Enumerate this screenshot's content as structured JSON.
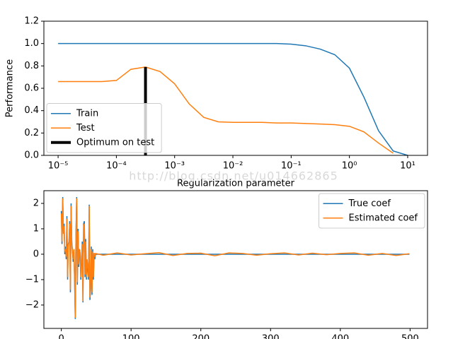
{
  "chart_data": [
    {
      "type": "line",
      "xscale": "log",
      "xlabel": "Regularization parameter",
      "ylabel": "Performance",
      "watermark": "http://blog.csdn.net/u014662865",
      "legend": "lower left",
      "x": [
        1e-05,
        1.778e-05,
        3.162e-05,
        5.623e-05,
        0.0001,
        0.0001778,
        0.0003162,
        0.0005623,
        0.001,
        0.001778,
        0.003162,
        0.005623,
        0.01,
        0.01778,
        0.03162,
        0.05623,
        0.1,
        0.1778,
        0.3162,
        0.5623,
        1,
        1.778,
        3.162,
        5.623,
        10
      ],
      "series": [
        {
          "name": "Train",
          "color": "#1f77b4",
          "linewidth": 1.5,
          "values": [
            1.0,
            1.0,
            1.0,
            1.0,
            1.0,
            1.0,
            1.0,
            1.0,
            1.0,
            1.0,
            1.0,
            1.0,
            1.0,
            1.0,
            1.0,
            1.0,
            0.995,
            0.98,
            0.95,
            0.9,
            0.78,
            0.52,
            0.22,
            0.04,
            0.0
          ]
        },
        {
          "name": "Test",
          "color": "#ff7f0e",
          "linewidth": 1.5,
          "values": [
            0.66,
            0.66,
            0.66,
            0.66,
            0.67,
            0.77,
            0.79,
            0.75,
            0.64,
            0.46,
            0.34,
            0.3,
            0.295,
            0.295,
            0.295,
            0.29,
            0.29,
            0.285,
            0.28,
            0.275,
            0.26,
            0.21,
            0.11,
            0.02,
            null
          ]
        },
        {
          "name": "Optimum on test",
          "color": "#000000",
          "linewidth": 4,
          "x": [
            0.0003162,
            0.0003162
          ],
          "values": [
            0,
            0.79
          ]
        }
      ],
      "xlim": [
        5.7e-06,
        21.9
      ],
      "ylim": [
        0,
        1.2
      ],
      "xticks": [
        {
          "value": 1e-05,
          "label": "10⁻⁵"
        },
        {
          "value": 0.0001,
          "label": "10⁻⁴"
        },
        {
          "value": 0.001,
          "label": "10⁻³"
        },
        {
          "value": 0.01,
          "label": "10⁻²"
        },
        {
          "value": 0.1,
          "label": "10⁻¹"
        },
        {
          "value": 1,
          "label": "10⁰"
        },
        {
          "value": 10,
          "label": "10¹"
        }
      ],
      "yticks": [
        {
          "value": 0,
          "label": "0.0"
        },
        0.2,
        0.4,
        0.6,
        0.8,
        {
          "value": 1,
          "label": "1.0"
        },
        1.2
      ]
    },
    {
      "type": "line",
      "legend": "upper right",
      "x": [
        0,
        1,
        2,
        3,
        4,
        5,
        6,
        7,
        8,
        9,
        10,
        11,
        12,
        13,
        14,
        15,
        16,
        17,
        18,
        19,
        20,
        21,
        22,
        23,
        24,
        25,
        26,
        27,
        28,
        29,
        30,
        31,
        32,
        33,
        34,
        35,
        36,
        37,
        38,
        39,
        40,
        41,
        42,
        43,
        44,
        45,
        46,
        47,
        48,
        49,
        60,
        80,
        100,
        120,
        140,
        160,
        180,
        200,
        220,
        240,
        260,
        280,
        300,
        320,
        340,
        360,
        380,
        400,
        420,
        440,
        460,
        480,
        499
      ],
      "series": [
        {
          "name": "True coef",
          "color": "#1f77b4",
          "linewidth": 1.5,
          "values": [
            1.7,
            0.4,
            2.25,
            0.9,
            1.2,
            0,
            0.3,
            -0.2,
            1.5,
            -1,
            0.4,
            0.5,
            1.3,
            -1.5,
            2.0,
            0.5,
            0.1,
            -0.3,
            0.2,
            -1.0,
            -2.55,
            0.8,
            2.25,
            -1.2,
            1.0,
            -0.5,
            0.2,
            0,
            -1.0,
            -0.3,
            0.5,
            -1.9,
            1.2,
            1.3,
            -0.9,
            0.6,
            -1.0,
            -0.3,
            -0.6,
            -1.0,
            1.95,
            -1.8,
            -1.4,
            0.3,
            -1.6,
            0.2,
            -1.0,
            0,
            -0.2,
            0,
            0,
            0,
            0,
            0,
            0,
            0,
            0,
            0,
            0,
            0,
            0,
            0,
            0,
            0,
            0,
            0,
            0,
            0,
            0,
            0,
            0,
            0,
            0
          ]
        },
        {
          "name": "Estimated coef",
          "color": "#ff7f0e",
          "linewidth": 1.5,
          "values": [
            1.6,
            0.5,
            2.2,
            0.8,
            1.1,
            0.1,
            0.2,
            -0.1,
            1.4,
            -0.9,
            0.3,
            0.5,
            1.2,
            -1.4,
            1.9,
            0.4,
            0.1,
            -0.2,
            0.2,
            -0.9,
            -2.5,
            0.7,
            2.2,
            -1.1,
            0.9,
            -0.4,
            0.2,
            0.05,
            -0.9,
            -0.2,
            0.4,
            -1.85,
            1.1,
            1.2,
            -0.8,
            0.5,
            -0.9,
            -0.2,
            -0.5,
            -0.9,
            1.9,
            -1.7,
            -1.3,
            0.2,
            -1.5,
            0.1,
            -0.9,
            0.05,
            -0.1,
            0.03,
            -0.04,
            0.05,
            -0.03,
            0.02,
            0.06,
            -0.05,
            0.03,
            0.04,
            -0.06,
            0.05,
            0.03,
            -0.04,
            0.02,
            0.05,
            -0.03,
            0.04,
            -0.02,
            0.03,
            0.05,
            -0.04,
            0.03,
            -0.05,
            0.02
          ]
        }
      ],
      "xlim": [
        -25,
        525
      ],
      "ylim": [
        -2.92,
        2.5
      ],
      "xticks": [
        0,
        100,
        200,
        300,
        400,
        500
      ],
      "yticks": [
        {
          "value": -2,
          "label": "−2"
        },
        {
          "value": -1,
          "label": "−1"
        },
        0,
        1,
        2
      ]
    }
  ]
}
